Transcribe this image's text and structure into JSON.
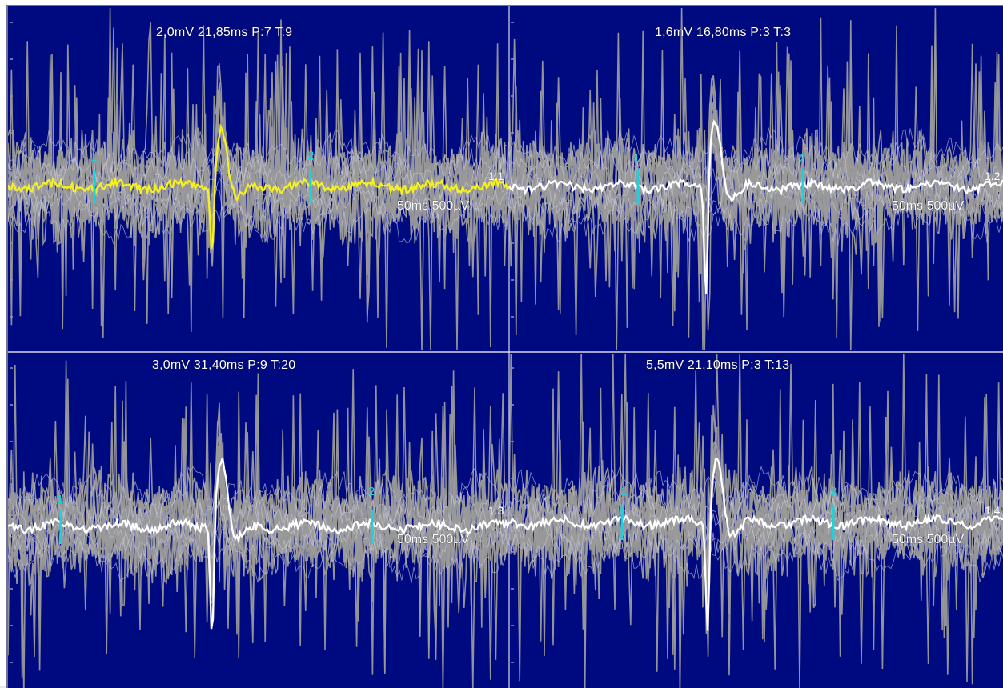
{
  "colors": {
    "background": "#000a80",
    "grid": "#d8d8e8",
    "raw_trace": "#9a9a9a",
    "average_active": "#f5f020",
    "average": "#ffffff",
    "cursor": "#22d0d8"
  },
  "panels": [
    {
      "id": "1.1",
      "header": "2,0mV 21,85ms P:7 T:9",
      "channel": "1.1",
      "scale": "50ms 500µV",
      "cursor_labels": [
        "1",
        "2"
      ],
      "active": true,
      "seed": 11
    },
    {
      "id": "1.2",
      "header": "1,6mV 16,80ms P:3 T:3",
      "channel": "1.2",
      "scale": "50ms 500µV",
      "cursor_labels": [
        "1",
        "2"
      ],
      "active": false,
      "seed": 23
    },
    {
      "id": "1.3",
      "header": "3,0mV 31,40ms P:9 T:20",
      "channel": "1.3",
      "scale": "50ms 500µV",
      "cursor_labels": [
        "1",
        "2"
      ],
      "active": false,
      "seed": 37
    },
    {
      "id": "1.4",
      "header": "5,5mV 21,10ms P:3 T:13",
      "channel": "1.4",
      "scale": "50ms 500µV",
      "cursor_labels": [
        "1",
        "2"
      ],
      "active": false,
      "seed": 51
    }
  ]
}
